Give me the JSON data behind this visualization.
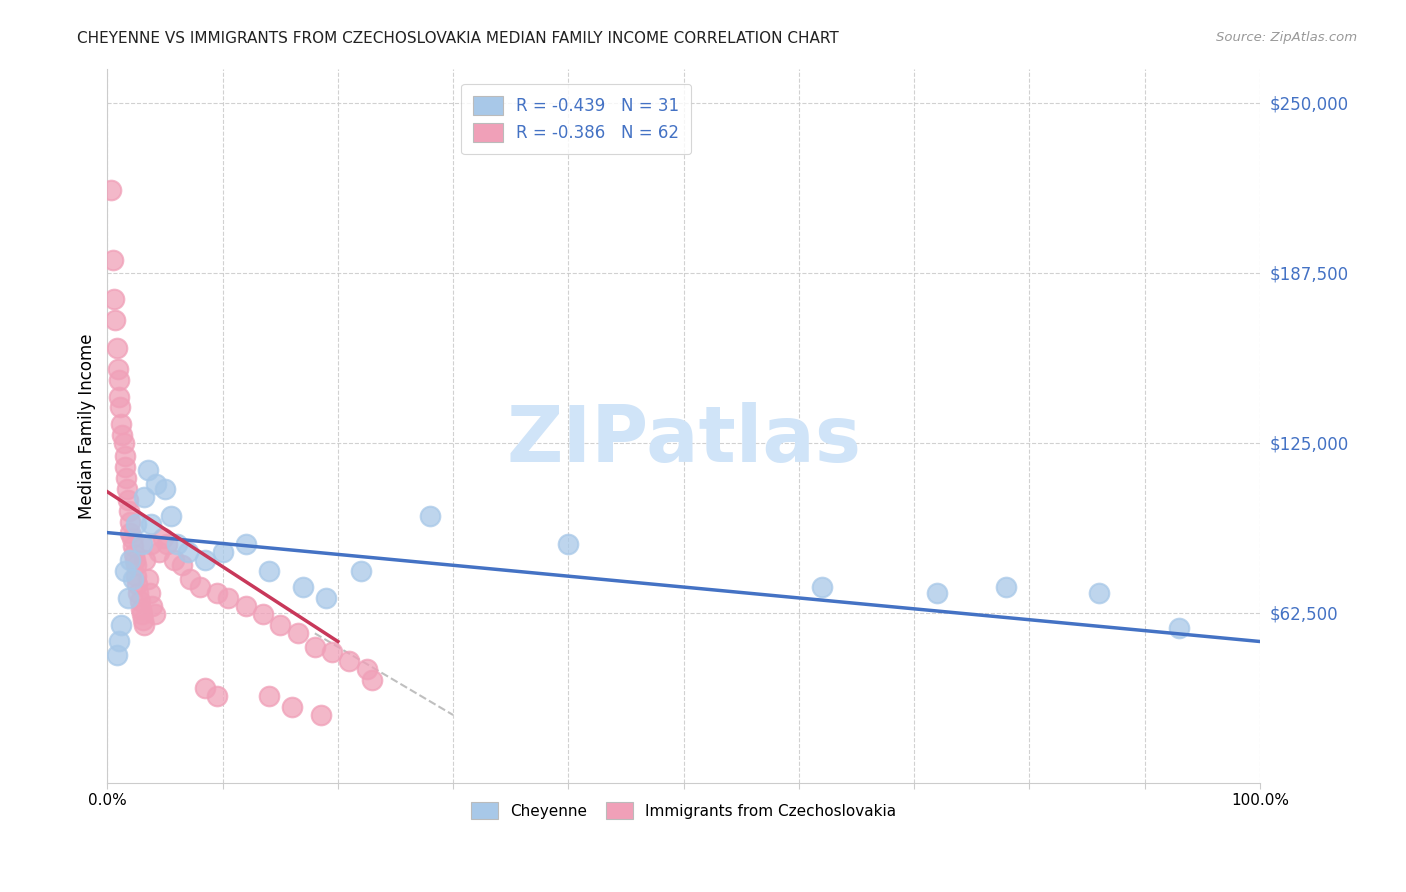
{
  "title": "CHEYENNE VS IMMIGRANTS FROM CZECHOSLOVAKIA MEDIAN FAMILY INCOME CORRELATION CHART",
  "source": "Source: ZipAtlas.com",
  "ylabel": "Median Family Income",
  "xlim": [
    0.0,
    100.0
  ],
  "ylim": [
    0,
    262500
  ],
  "yticks": [
    62500,
    125000,
    187500,
    250000
  ],
  "ytick_labels": [
    "$62,500",
    "$125,000",
    "$187,500",
    "$250,000"
  ],
  "xticks": [
    0,
    10,
    20,
    30,
    40,
    50,
    60,
    70,
    80,
    90,
    100
  ],
  "xtick_labels": [
    "0.0%",
    "",
    "",
    "",
    "",
    "",
    "",
    "",
    "",
    "",
    "100.0%"
  ],
  "legend_r1": "R = -0.439",
  "legend_n1": "N = 31",
  "legend_r2": "R = -0.386",
  "legend_n2": "N = 62",
  "cheyenne_color": "#a8c8e8",
  "czech_color": "#f0a0b8",
  "trend_blue": "#4472c4",
  "trend_pink": "#c8385a",
  "watermark": "ZIPatlas",
  "watermark_color": "#d0e4f8",
  "blue_line_x0": 0,
  "blue_line_y0": 92000,
  "blue_line_x1": 100,
  "blue_line_y1": 52000,
  "pink_line_x0": 0,
  "pink_line_y0": 107000,
  "pink_line_x1": 20,
  "pink_line_y1": 52000,
  "dash_line_x0": 18,
  "dash_line_y0": 55000,
  "dash_line_x1": 30,
  "dash_line_y1": 25000,
  "cheyenne_x": [
    0.8,
    1.0,
    1.2,
    1.5,
    1.8,
    2.0,
    2.2,
    2.5,
    3.0,
    3.2,
    3.5,
    3.8,
    4.2,
    5.0,
    5.5,
    6.0,
    7.0,
    8.5,
    10.0,
    12.0,
    14.0,
    17.0,
    19.0,
    22.0,
    28.0,
    40.0,
    62.0,
    72.0,
    78.0,
    86.0,
    93.0
  ],
  "cheyenne_y": [
    47000,
    52000,
    58000,
    78000,
    68000,
    82000,
    75000,
    95000,
    88000,
    105000,
    115000,
    95000,
    110000,
    108000,
    98000,
    88000,
    85000,
    82000,
    85000,
    88000,
    78000,
    72000,
    68000,
    78000,
    98000,
    88000,
    72000,
    70000,
    72000,
    70000,
    57000
  ],
  "czech_x": [
    0.3,
    0.5,
    0.6,
    0.7,
    0.8,
    0.9,
    1.0,
    1.0,
    1.1,
    1.2,
    1.3,
    1.4,
    1.5,
    1.5,
    1.6,
    1.7,
    1.8,
    1.9,
    2.0,
    2.0,
    2.1,
    2.2,
    2.3,
    2.4,
    2.5,
    2.5,
    2.6,
    2.7,
    2.8,
    2.9,
    3.0,
    3.1,
    3.2,
    3.3,
    3.5,
    3.7,
    3.9,
    4.1,
    4.5,
    5.2,
    5.8,
    6.5,
    7.2,
    8.0,
    9.5,
    10.5,
    12.0,
    13.5,
    15.0,
    16.5,
    18.0,
    19.5,
    21.0,
    22.5,
    23.0,
    14.0,
    16.0,
    18.5,
    4.8,
    3.8,
    8.5,
    9.5
  ],
  "czech_y": [
    218000,
    192000,
    178000,
    170000,
    160000,
    152000,
    148000,
    142000,
    138000,
    132000,
    128000,
    125000,
    120000,
    116000,
    112000,
    108000,
    104000,
    100000,
    96000,
    92000,
    90000,
    87000,
    84000,
    82000,
    80000,
    76000,
    73000,
    70000,
    67000,
    64000,
    62000,
    60000,
    58000,
    82000,
    75000,
    70000,
    65000,
    62000,
    85000,
    88000,
    82000,
    80000,
    75000,
    72000,
    70000,
    68000,
    65000,
    62000,
    58000,
    55000,
    50000,
    48000,
    45000,
    42000,
    38000,
    32000,
    28000,
    25000,
    90000,
    88000,
    35000,
    32000
  ]
}
